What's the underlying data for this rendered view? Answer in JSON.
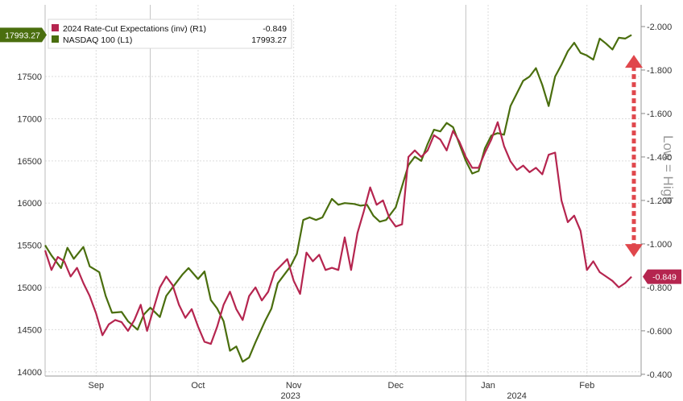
{
  "chart_data": {
    "type": "line",
    "legend": {
      "placement": "top-left",
      "entries": [
        {
          "label": "2024 Rate-Cut Expectations (inv) (R1)",
          "last": "-0.849",
          "color": "#b5254f"
        },
        {
          "label": "NASDAQ 100 (L1)",
          "last": "17993.27",
          "color": "#4a6e0e"
        }
      ]
    },
    "left_axis": {
      "range": [
        13950,
        18350
      ],
      "ticks": [
        14000,
        14500,
        15000,
        15500,
        16000,
        16500,
        17000,
        17500
      ],
      "last_tag": "17993.27"
    },
    "right_axis": {
      "range": [
        -0.392,
        -2.1
      ],
      "ticks": [
        "-0.400",
        "-0.600",
        "-0.800",
        "-1.000",
        "-1.200",
        "-1.400",
        "-1.600",
        "-1.800",
        "-2.000"
      ],
      "tick_values": [
        -0.4,
        -0.6,
        -0.8,
        -1.0,
        -1.2,
        -1.4,
        -1.6,
        -1.8,
        -2.0
      ],
      "last_tag": "-0.849"
    },
    "x_axis": {
      "range": [
        "2023-08-22",
        "2024-02-25"
      ],
      "months": [
        {
          "label": "Sep",
          "date": "2023-09-07"
        },
        {
          "label": "Oct",
          "date": "2023-10-09"
        },
        {
          "label": "Nov",
          "date": "2023-11-08"
        },
        {
          "label": "Dec",
          "date": "2023-12-10"
        },
        {
          "label": "Jan",
          "date": "2024-01-08"
        },
        {
          "label": "Feb",
          "date": "2024-02-08"
        }
      ],
      "year_ticks": [
        "2023-09-24",
        "2024-01-01"
      ],
      "years": [
        {
          "label": "2023",
          "date": "2023-11-07"
        },
        {
          "label": "2024",
          "date": "2024-01-17"
        }
      ]
    },
    "grid": true,
    "series": [
      {
        "name": "NASDAQ 100 (L1)",
        "axis": "left",
        "color": "#4a6e0e",
        "points": [
          [
            "2023-08-22",
            15500
          ],
          [
            "2023-08-24",
            15380
          ],
          [
            "2023-08-27",
            15230
          ],
          [
            "2023-08-29",
            15470
          ],
          [
            "2023-08-31",
            15340
          ],
          [
            "2023-09-03",
            15480
          ],
          [
            "2023-09-05",
            15250
          ],
          [
            "2023-09-08",
            15180
          ],
          [
            "2023-09-10",
            14900
          ],
          [
            "2023-09-12",
            14700
          ],
          [
            "2023-09-15",
            14710
          ],
          [
            "2023-09-17",
            14600
          ],
          [
            "2023-09-20",
            14500
          ],
          [
            "2023-09-22",
            14680
          ],
          [
            "2023-09-24",
            14760
          ],
          [
            "2023-09-27",
            14650
          ],
          [
            "2023-09-29",
            14900
          ],
          [
            "2023-10-02",
            15050
          ],
          [
            "2023-10-04",
            15150
          ],
          [
            "2023-10-06",
            15230
          ],
          [
            "2023-10-09",
            15100
          ],
          [
            "2023-10-11",
            15190
          ],
          [
            "2023-10-13",
            14850
          ],
          [
            "2023-10-15",
            14750
          ],
          [
            "2023-10-17",
            14600
          ],
          [
            "2023-10-19",
            14250
          ],
          [
            "2023-10-21",
            14300
          ],
          [
            "2023-10-23",
            14120
          ],
          [
            "2023-10-25",
            14170
          ],
          [
            "2023-10-27",
            14350
          ],
          [
            "2023-10-30",
            14600
          ],
          [
            "2023-11-01",
            14750
          ],
          [
            "2023-11-03",
            15050
          ],
          [
            "2023-11-05",
            15150
          ],
          [
            "2023-11-07",
            15250
          ],
          [
            "2023-11-09",
            15400
          ],
          [
            "2023-11-11",
            15800
          ],
          [
            "2023-11-13",
            15830
          ],
          [
            "2023-11-15",
            15800
          ],
          [
            "2023-11-17",
            15830
          ],
          [
            "2023-11-20",
            16050
          ],
          [
            "2023-11-22",
            15980
          ],
          [
            "2023-11-24",
            16000
          ],
          [
            "2023-11-27",
            15990
          ],
          [
            "2023-11-29",
            15970
          ],
          [
            "2023-12-01",
            15980
          ],
          [
            "2023-12-03",
            15850
          ],
          [
            "2023-12-05",
            15780
          ],
          [
            "2023-12-07",
            15800
          ],
          [
            "2023-12-10",
            15950
          ],
          [
            "2023-12-12",
            16200
          ],
          [
            "2023-12-14",
            16450
          ],
          [
            "2023-12-16",
            16550
          ],
          [
            "2023-12-18",
            16500
          ],
          [
            "2023-12-20",
            16700
          ],
          [
            "2023-12-22",
            16870
          ],
          [
            "2023-12-24",
            16850
          ],
          [
            "2023-12-26",
            16950
          ],
          [
            "2023-12-28",
            16900
          ],
          [
            "2023-12-30",
            16700
          ],
          [
            "2024-01-01",
            16500
          ],
          [
            "2024-01-03",
            16350
          ],
          [
            "2024-01-05",
            16380
          ],
          [
            "2024-01-07",
            16650
          ],
          [
            "2024-01-09",
            16800
          ],
          [
            "2024-01-11",
            16830
          ],
          [
            "2024-01-13",
            16810
          ],
          [
            "2024-01-15",
            17150
          ],
          [
            "2024-01-17",
            17300
          ],
          [
            "2024-01-19",
            17450
          ],
          [
            "2024-01-21",
            17500
          ],
          [
            "2024-01-23",
            17600
          ],
          [
            "2024-01-25",
            17400
          ],
          [
            "2024-01-27",
            17150
          ],
          [
            "2024-01-29",
            17500
          ],
          [
            "2024-01-31",
            17640
          ],
          [
            "2024-02-02",
            17800
          ],
          [
            "2024-02-04",
            17900
          ],
          [
            "2024-02-06",
            17780
          ],
          [
            "2024-02-08",
            17750
          ],
          [
            "2024-02-10",
            17700
          ],
          [
            "2024-02-12",
            17950
          ],
          [
            "2024-02-14",
            17890
          ],
          [
            "2024-02-16",
            17820
          ],
          [
            "2024-02-18",
            17960
          ],
          [
            "2024-02-20",
            17950
          ],
          [
            "2024-02-22",
            17993.27
          ]
        ]
      },
      {
        "name": "2024 Rate-Cut Expectations (inv) (R1)",
        "axis": "right",
        "color": "#b5254f",
        "points": [
          [
            "2023-08-22",
            -0.97
          ],
          [
            "2023-08-24",
            -0.88
          ],
          [
            "2023-08-26",
            -0.94
          ],
          [
            "2023-08-28",
            -0.92
          ],
          [
            "2023-08-30",
            -0.85
          ],
          [
            "2023-09-01",
            -0.89
          ],
          [
            "2023-09-03",
            -0.82
          ],
          [
            "2023-09-05",
            -0.76
          ],
          [
            "2023-09-07",
            -0.68
          ],
          [
            "2023-09-09",
            -0.58
          ],
          [
            "2023-09-11",
            -0.63
          ],
          [
            "2023-09-13",
            -0.65
          ],
          [
            "2023-09-15",
            -0.64
          ],
          [
            "2023-09-17",
            -0.6
          ],
          [
            "2023-09-19",
            -0.65
          ],
          [
            "2023-09-21",
            -0.72
          ],
          [
            "2023-09-23",
            -0.6
          ],
          [
            "2023-09-25",
            -0.7
          ],
          [
            "2023-09-27",
            -0.8
          ],
          [
            "2023-09-29",
            -0.85
          ],
          [
            "2023-10-01",
            -0.81
          ],
          [
            "2023-10-03",
            -0.72
          ],
          [
            "2023-10-05",
            -0.66
          ],
          [
            "2023-10-07",
            -0.7
          ],
          [
            "2023-10-09",
            -0.62
          ],
          [
            "2023-10-11",
            -0.55
          ],
          [
            "2023-10-13",
            -0.54
          ],
          [
            "2023-10-15",
            -0.62
          ],
          [
            "2023-10-17",
            -0.72
          ],
          [
            "2023-10-19",
            -0.78
          ],
          [
            "2023-10-21",
            -0.7
          ],
          [
            "2023-10-23",
            -0.65
          ],
          [
            "2023-10-25",
            -0.76
          ],
          [
            "2023-10-27",
            -0.8
          ],
          [
            "2023-10-29",
            -0.74
          ],
          [
            "2023-10-31",
            -0.78
          ],
          [
            "2023-11-02",
            -0.87
          ],
          [
            "2023-11-04",
            -0.9
          ],
          [
            "2023-11-06",
            -0.93
          ],
          [
            "2023-11-08",
            -0.83
          ],
          [
            "2023-11-10",
            -0.77
          ],
          [
            "2023-11-12",
            -0.96
          ],
          [
            "2023-11-14",
            -0.92
          ],
          [
            "2023-11-16",
            -0.95
          ],
          [
            "2023-11-18",
            -0.88
          ],
          [
            "2023-11-20",
            -0.89
          ],
          [
            "2023-11-22",
            -0.88
          ],
          [
            "2023-11-24",
            -1.03
          ],
          [
            "2023-11-26",
            -0.88
          ],
          [
            "2023-11-28",
            -1.05
          ],
          [
            "2023-11-30",
            -1.15
          ],
          [
            "2023-12-02",
            -1.26
          ],
          [
            "2023-12-04",
            -1.18
          ],
          [
            "2023-12-06",
            -1.2
          ],
          [
            "2023-12-08",
            -1.12
          ],
          [
            "2023-12-10",
            -1.08
          ],
          [
            "2023-12-12",
            -1.09
          ],
          [
            "2023-12-14",
            -1.4
          ],
          [
            "2023-12-16",
            -1.43
          ],
          [
            "2023-12-18",
            -1.4
          ],
          [
            "2023-12-20",
            -1.43
          ],
          [
            "2023-12-22",
            -1.5
          ],
          [
            "2023-12-24",
            -1.48
          ],
          [
            "2023-12-26",
            -1.43
          ],
          [
            "2023-12-28",
            -1.52
          ],
          [
            "2023-12-30",
            -1.47
          ],
          [
            "2024-01-01",
            -1.4
          ],
          [
            "2024-01-03",
            -1.35
          ],
          [
            "2024-01-05",
            -1.35
          ],
          [
            "2024-01-07",
            -1.42
          ],
          [
            "2024-01-09",
            -1.48
          ],
          [
            "2024-01-11",
            -1.56
          ],
          [
            "2024-01-13",
            -1.45
          ],
          [
            "2024-01-15",
            -1.38
          ],
          [
            "2024-01-17",
            -1.34
          ],
          [
            "2024-01-19",
            -1.36
          ],
          [
            "2024-01-21",
            -1.33
          ],
          [
            "2024-01-23",
            -1.35
          ],
          [
            "2024-01-25",
            -1.32
          ],
          [
            "2024-01-27",
            -1.41
          ],
          [
            "2024-01-29",
            -1.42
          ],
          [
            "2024-01-31",
            -1.2
          ],
          [
            "2024-02-02",
            -1.1
          ],
          [
            "2024-02-04",
            -1.13
          ],
          [
            "2024-02-06",
            -1.06
          ],
          [
            "2024-02-08",
            -0.88
          ],
          [
            "2024-02-10",
            -0.92
          ],
          [
            "2024-02-12",
            -0.87
          ],
          [
            "2024-02-14",
            -0.85
          ],
          [
            "2024-02-16",
            -0.83
          ],
          [
            "2024-02-18",
            -0.8
          ],
          [
            "2024-02-20",
            -0.82
          ],
          [
            "2024-02-22",
            -0.849
          ]
        ]
      }
    ],
    "annotation": {
      "text": "Low = High",
      "arrow_color": "#e0474c",
      "arrow_from": -0.94,
      "arrow_to": -1.87
    }
  }
}
